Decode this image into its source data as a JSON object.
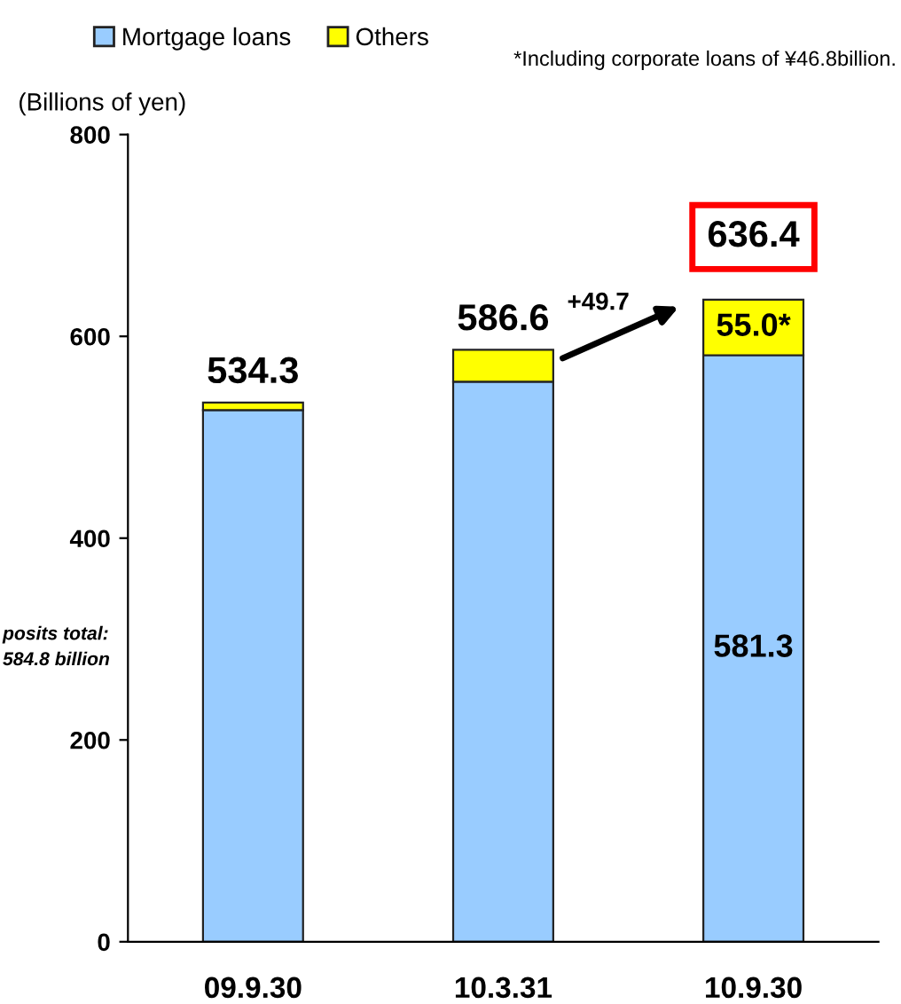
{
  "chart_data": {
    "type": "bar",
    "stacked": true,
    "ylabel": "(Billions of yen)",
    "categories": [
      "09.9.30",
      "10.3.31",
      "10.9.30"
    ],
    "series": [
      {
        "name": "Mortgage loans",
        "color": "#99ccff",
        "values": [
          527,
          555,
          581.3
        ],
        "value_labels": [
          null,
          null,
          "581.3"
        ]
      },
      {
        "name": "Others",
        "color": "#ffff00",
        "values": [
          7.3,
          31.6,
          55.0
        ],
        "value_labels": [
          null,
          null,
          "55.0*"
        ]
      }
    ],
    "totals": [
      "534.3",
      "586.6",
      "636.4"
    ],
    "ylim": [
      0,
      800
    ],
    "yticks": [
      0,
      200,
      400,
      600,
      800
    ],
    "grid": false,
    "legend": "top left",
    "annotations": [
      "*Including corporate loans of ¥46.8billion.",
      "posits total:\n584.8 billion",
      "+49.7"
    ]
  }
}
